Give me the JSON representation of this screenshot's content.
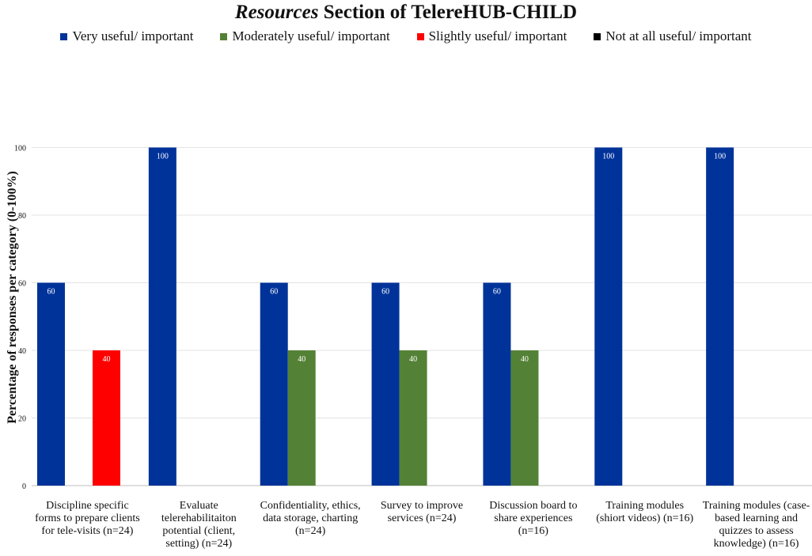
{
  "chart_data": {
    "type": "bar",
    "title_italic": "Resources",
    "title_rest": "Section of TelereHUB-CHILD",
    "ylabel": "Percentage of responses per category (0-100%)",
    "xlabel": "",
    "ylim": [
      0,
      120
    ],
    "yticks": [
      0,
      20,
      40,
      60,
      80,
      100
    ],
    "grid": true,
    "legend_position": "top",
    "categories": [
      "Discipline specific forms to prepare clients for tele-visits (n=24)",
      "Evaluate telerehabilitaiton potential (client, setting) (n=24)",
      "Confidentiality, ethics, data storage, charting (n=24)",
      "Survey to improve services (n=24)",
      "Discussion board to share experiences (n=16)",
      "Training modules (shiort videos) (n=16)",
      "Training modules (case-based learning and quizzes to assess knowledge) (n=16)"
    ],
    "series": [
      {
        "name": "Very useful/ important",
        "color": "#00339a",
        "values": [
          60,
          100,
          60,
          60,
          60,
          100,
          100
        ]
      },
      {
        "name": "Moderately useful/ important",
        "color": "#538135",
        "values": [
          0,
          0,
          40,
          40,
          40,
          0,
          0
        ]
      },
      {
        "name": "Slightly useful/ important",
        "color": "#ff0000",
        "values": [
          40,
          0,
          0,
          0,
          0,
          0,
          0
        ]
      },
      {
        "name": "Not at all useful/ important",
        "color": "#000000",
        "values": [
          0,
          0,
          0,
          0,
          0,
          0,
          0
        ]
      }
    ]
  }
}
